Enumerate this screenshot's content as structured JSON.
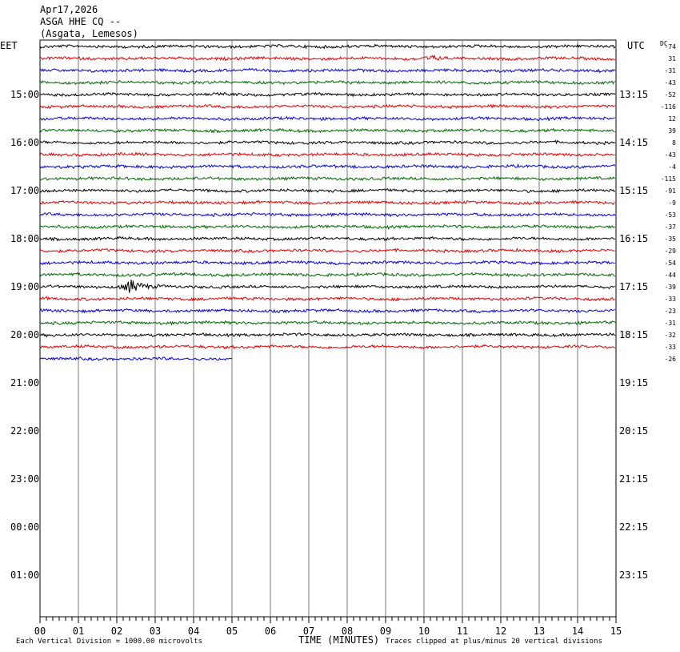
{
  "header": {
    "date": "Apr17,2026",
    "station": "ASGA HHE CQ --",
    "location": "(Asgata, Lemesos)"
  },
  "labels": {
    "left_tz": "EET",
    "right_tz": "UTC",
    "dc_label": "DC"
  },
  "chart_data": {
    "type": "line",
    "title": "ASGA HHE CQ --",
    "xlabel": "TIME (MINUTES)",
    "xlim": [
      0,
      15
    ],
    "x_ticks": [
      "00",
      "01",
      "02",
      "03",
      "04",
      "05",
      "06",
      "07",
      "08",
      "09",
      "10",
      "11",
      "12",
      "13",
      "14",
      "15"
    ],
    "left_hour_labels": [
      "15:00",
      "16:00",
      "17:00",
      "18:00",
      "19:00",
      "20:00",
      "21:00",
      "22:00",
      "23:00",
      "00:00",
      "01:00"
    ],
    "right_hour_labels": [
      "13:15",
      "14:15",
      "15:15",
      "16:15",
      "17:15",
      "18:15",
      "19:15",
      "20:15",
      "21:15",
      "22:15",
      "23:15"
    ],
    "trace_colors": [
      "#000000",
      "#dd0000",
      "#0000cc",
      "#006600"
    ],
    "dc_offsets": [
      -74,
      31,
      -31,
      -43,
      -52,
      -116,
      12,
      39,
      8,
      -43,
      -4,
      -115,
      -91,
      -9,
      -53,
      -37,
      -35,
      -29,
      -54,
      -44,
      -39,
      -33,
      -23,
      -31,
      -32,
      -33,
      -26
    ],
    "trace_count": 27,
    "last_trace_end_minute": 5,
    "events": [
      {
        "trace": 20,
        "minute": 2.3,
        "type": "earthquake"
      },
      {
        "trace": 1,
        "minute": 10.2,
        "type": "disturbance"
      }
    ],
    "scale_note": "Each Vertical Division = 1000.00 microvolts",
    "clip_note": "Traces clipped at plus/minus 20 vertical divisions"
  }
}
